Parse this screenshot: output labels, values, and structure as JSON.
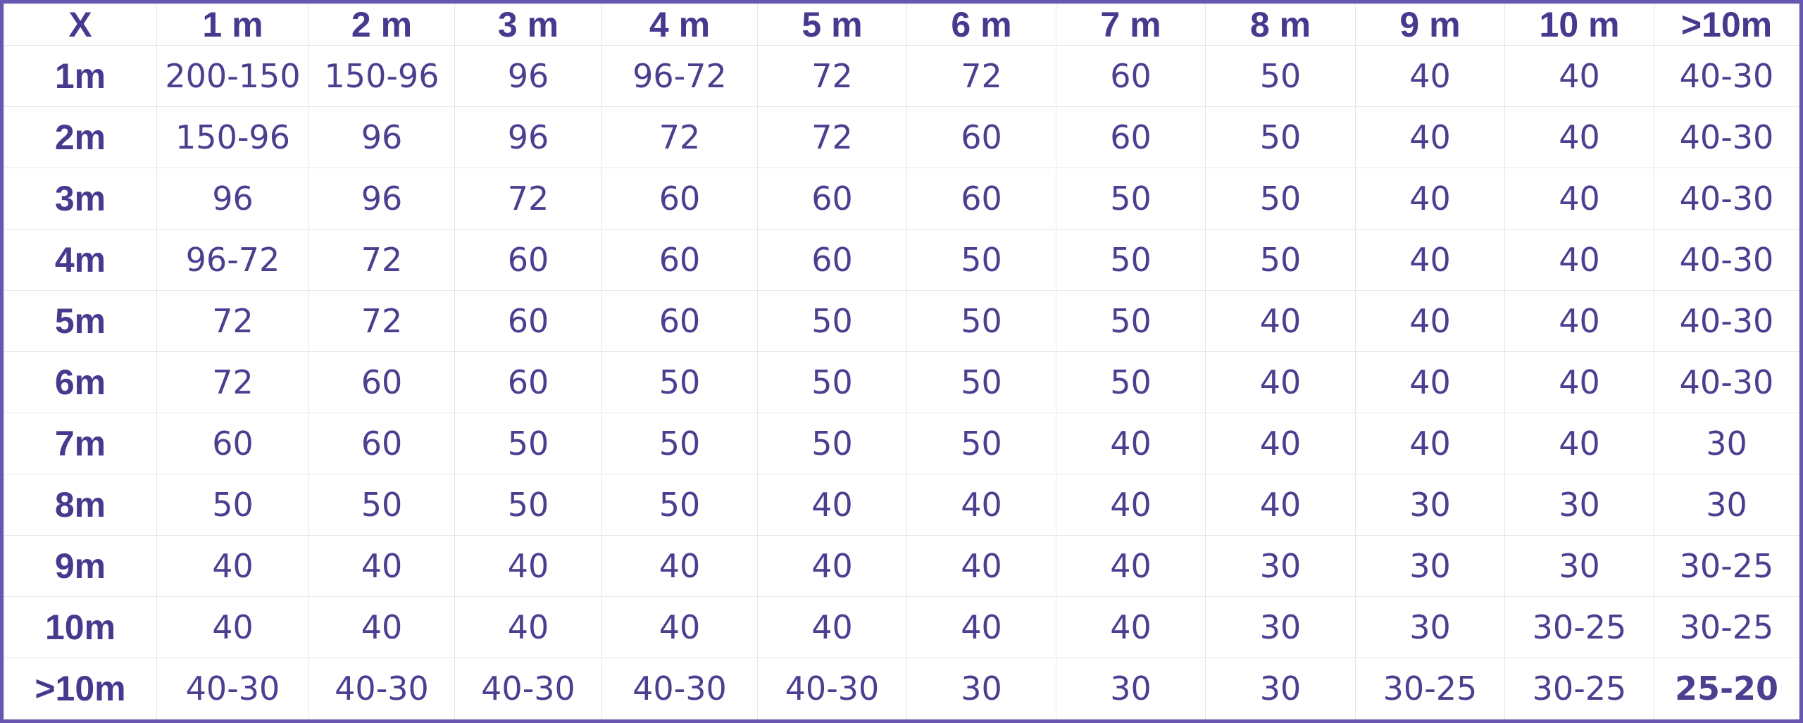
{
  "table": {
    "corner": "X",
    "columns": [
      "1 m",
      "2 m",
      "3 m",
      "4 m",
      "5 m",
      "6 m",
      "7 m",
      "8 m",
      "9 m",
      "10 m",
      ">10m"
    ],
    "rows": [
      {
        "label": "1m",
        "cells": [
          "200-150",
          "150-96",
          "96",
          "96-72",
          "72",
          "72",
          "60",
          "50",
          "40",
          "40",
          "40-30"
        ]
      },
      {
        "label": "2m",
        "cells": [
          "150-96",
          "96",
          "96",
          "72",
          "72",
          "60",
          "60",
          "50",
          "40",
          "40",
          "40-30"
        ]
      },
      {
        "label": "3m",
        "cells": [
          "96",
          "96",
          "72",
          "60",
          "60",
          "60",
          "50",
          "50",
          "40",
          "40",
          "40-30"
        ]
      },
      {
        "label": "4m",
        "cells": [
          "96-72",
          "72",
          "60",
          "60",
          "60",
          "50",
          "50",
          "50",
          "40",
          "40",
          "40-30"
        ]
      },
      {
        "label": "5m",
        "cells": [
          "72",
          "72",
          "60",
          "60",
          "50",
          "50",
          "50",
          "40",
          "40",
          "40",
          "40-30"
        ]
      },
      {
        "label": "6m",
        "cells": [
          "72",
          "60",
          "60",
          "50",
          "50",
          "50",
          "50",
          "40",
          "40",
          "40",
          "40-30"
        ]
      },
      {
        "label": "7m",
        "cells": [
          "60",
          "60",
          "50",
          "50",
          "50",
          "50",
          "40",
          "40",
          "40",
          "40",
          "30"
        ]
      },
      {
        "label": "8m",
        "cells": [
          "50",
          "50",
          "50",
          "50",
          "40",
          "40",
          "40",
          "40",
          "30",
          "30",
          "30"
        ]
      },
      {
        "label": "9m",
        "cells": [
          "40",
          "40",
          "40",
          "40",
          "40",
          "40",
          "40",
          "30",
          "30",
          "30",
          "30-25"
        ]
      },
      {
        "label": "10m",
        "cells": [
          "40",
          "40",
          "40",
          "40",
          "40",
          "40",
          "40",
          "30",
          "30",
          "30-25",
          "30-25"
        ]
      },
      {
        "label": ">10m",
        "cells": [
          "40-30",
          "40-30",
          "40-30",
          "40-30",
          "40-30",
          "30",
          "30",
          "30",
          "30-25",
          "30-25",
          "25-20"
        ]
      }
    ]
  },
  "colors": {
    "text": "#4a3d8f",
    "border": "#6757b0",
    "grid": "#e6e6ea"
  }
}
